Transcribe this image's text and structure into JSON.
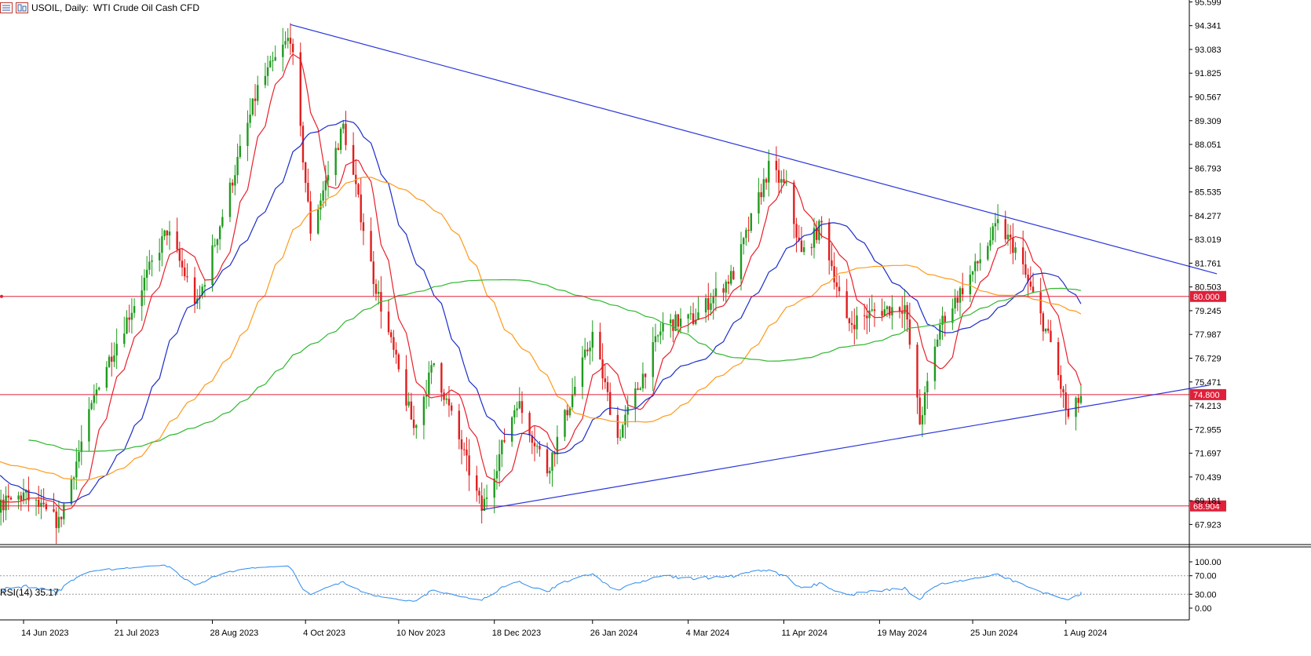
{
  "header": {
    "symbol": "USOIL, Daily:",
    "description": "WTI Crude Oil Cash CFD",
    "icons": [
      "indicator-list-icon",
      "template-icon"
    ]
  },
  "colors": {
    "candle_up": "#1e9b1e",
    "candle_down": "#e01e1e",
    "ma_fast": "#e8202a",
    "ma_mid": "#1c2dc8",
    "ma_slow_orange": "#ff9a1a",
    "ma_200_green": "#30b830",
    "trendline": "#2a36d9",
    "level_line": "#e0203a",
    "level_tag_bg": "#e0203a",
    "rsi_line": "#2d8bef"
  },
  "chart_data": {
    "type": "candlestick",
    "title": "USOIL, Daily: WTI Crude Oil Cash CFD",
    "x_tick_labels": [
      "14 Jun 2023",
      "21 Jul 2023",
      "28 Aug 2023",
      "4 Oct 2023",
      "10 Nov 2023",
      "18 Dec 2023",
      "26 Jan 2024",
      "4 Mar 2024",
      "11 Apr 2024",
      "19 May 2024",
      "25 Jun 2024",
      "1 Aug 2024"
    ],
    "y_tick_labels": [
      "95.599",
      "94.341",
      "93.083",
      "91.825",
      "90.567",
      "89.309",
      "88.051",
      "86.793",
      "85.535",
      "84.277",
      "83.019",
      "81.761",
      "80.503",
      "79.245",
      "77.987",
      "76.729",
      "75.471",
      "74.213",
      "72.955",
      "71.697",
      "70.439",
      "69.181",
      "67.923"
    ],
    "ylim": [
      66.9,
      95.7
    ],
    "horizontal_levels": [
      {
        "value": 80.0,
        "label": "80.000"
      },
      {
        "value": 74.8,
        "label": "74.800"
      },
      {
        "value": 68.904,
        "label": "68.904"
      }
    ],
    "trendlines": [
      {
        "name": "upper",
        "from": {
          "date": "2023-09-28",
          "price": 94.4
        },
        "to": {
          "date": "2024-09-30",
          "price": 81.2
        }
      },
      {
        "name": "lower",
        "from": {
          "date": "2023-12-13",
          "price": 68.7
        },
        "to": {
          "date": "2024-09-27",
          "price": 75.3
        }
      }
    ],
    "price_anchors": [
      {
        "date": "2023-06-14",
        "price": 69.5
      },
      {
        "date": "2023-06-28",
        "price": 68.0
      },
      {
        "date": "2023-07-14",
        "price": 75.5
      },
      {
        "date": "2023-08-10",
        "price": 83.5
      },
      {
        "date": "2023-08-22",
        "price": 79.5
      },
      {
        "date": "2023-09-15",
        "price": 91.0
      },
      {
        "date": "2023-09-28",
        "price": 93.8
      },
      {
        "date": "2023-10-06",
        "price": 83.5
      },
      {
        "date": "2023-10-19",
        "price": 89.0
      },
      {
        "date": "2023-10-31",
        "price": 81.0
      },
      {
        "date": "2023-11-16",
        "price": 73.0
      },
      {
        "date": "2023-11-24",
        "price": 76.5
      },
      {
        "date": "2023-12-13",
        "price": 68.7
      },
      {
        "date": "2023-12-27",
        "price": 74.5
      },
      {
        "date": "2024-01-08",
        "price": 70.8
      },
      {
        "date": "2024-01-26",
        "price": 78.0
      },
      {
        "date": "2024-02-05",
        "price": 72.5
      },
      {
        "date": "2024-02-23",
        "price": 78.5
      },
      {
        "date": "2024-03-06",
        "price": 78.8
      },
      {
        "date": "2024-03-22",
        "price": 81.2
      },
      {
        "date": "2024-04-05",
        "price": 86.8
      },
      {
        "date": "2024-04-12",
        "price": 85.7
      },
      {
        "date": "2024-04-18",
        "price": 82.2
      },
      {
        "date": "2024-04-26",
        "price": 83.8
      },
      {
        "date": "2024-05-06",
        "price": 78.5
      },
      {
        "date": "2024-05-17",
        "price": 79.2
      },
      {
        "date": "2024-05-29",
        "price": 79.5
      },
      {
        "date": "2024-06-04",
        "price": 73.3
      },
      {
        "date": "2024-06-12",
        "price": 78.5
      },
      {
        "date": "2024-06-26",
        "price": 81.5
      },
      {
        "date": "2024-07-05",
        "price": 83.8
      },
      {
        "date": "2024-07-12",
        "price": 82.5
      },
      {
        "date": "2024-07-19",
        "price": 80.0
      },
      {
        "date": "2024-07-26",
        "price": 77.5
      },
      {
        "date": "2024-08-02",
        "price": 73.5
      },
      {
        "date": "2024-08-07",
        "price": 74.7
      }
    ],
    "moving_averages": [
      {
        "period": 10,
        "color": "#e8202a"
      },
      {
        "period": 30,
        "color": "#1c2dc8"
      },
      {
        "period": 60,
        "color": "#ff9a1a"
      },
      {
        "period": 120,
        "color": "#30b830"
      }
    ],
    "rsi": {
      "label": "RSI(14) 35.17",
      "period": 14,
      "value": 35.17,
      "levels": [
        70,
        30
      ],
      "y_tick_labels": [
        "100.00",
        "70.00",
        "30.00",
        "0.00"
      ]
    }
  }
}
